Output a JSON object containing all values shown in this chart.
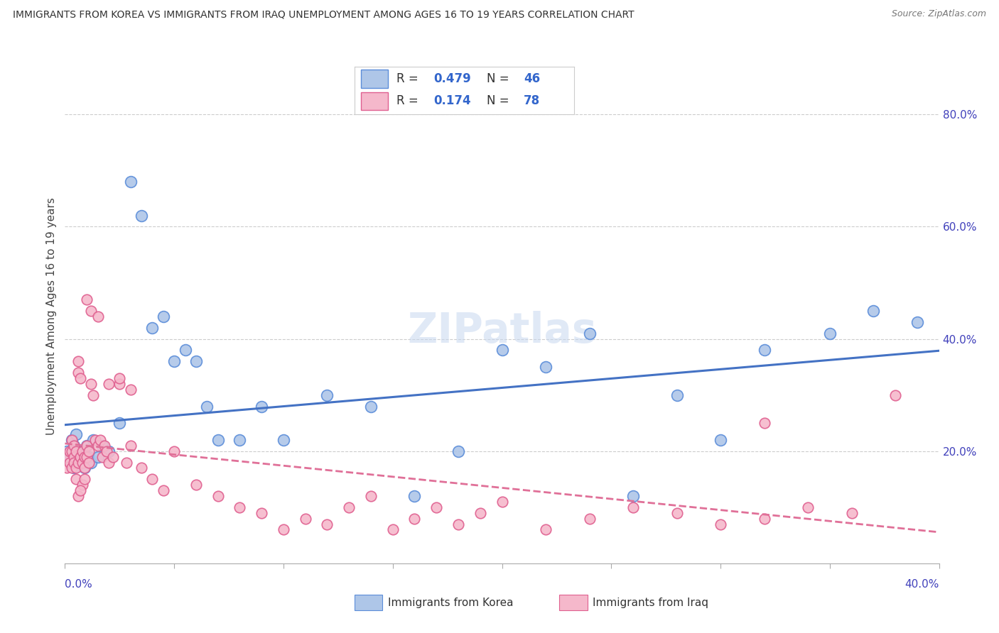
{
  "title": "IMMIGRANTS FROM KOREA VS IMMIGRANTS FROM IRAQ UNEMPLOYMENT AMONG AGES 16 TO 19 YEARS CORRELATION CHART",
  "source": "Source: ZipAtlas.com",
  "ylabel": "Unemployment Among Ages 16 to 19 years",
  "ylabel_right_ticks": [
    0.2,
    0.4,
    0.6,
    0.8
  ],
  "ylabel_right_labels": [
    "20.0%",
    "40.0%",
    "60.0%",
    "80.0%"
  ],
  "xlim": [
    0.0,
    0.4
  ],
  "ylim": [
    0.0,
    0.88
  ],
  "korea_R": 0.479,
  "korea_N": 46,
  "iraq_R": 0.174,
  "iraq_N": 78,
  "korea_color": "#aec6e8",
  "korea_edge_color": "#5b8dd9",
  "korea_line_color": "#4472c4",
  "iraq_color": "#f5b8cb",
  "iraq_edge_color": "#e06090",
  "iraq_line_color": "#e07098",
  "watermark": "ZIPatlas",
  "background_color": "#ffffff",
  "korea_x": [
    0.001,
    0.002,
    0.003,
    0.003,
    0.004,
    0.004,
    0.005,
    0.005,
    0.006,
    0.007,
    0.008,
    0.009,
    0.01,
    0.011,
    0.012,
    0.013,
    0.015,
    0.017,
    0.02,
    0.025,
    0.03,
    0.035,
    0.04,
    0.045,
    0.05,
    0.055,
    0.06,
    0.065,
    0.07,
    0.08,
    0.09,
    0.1,
    0.12,
    0.14,
    0.16,
    0.18,
    0.2,
    0.22,
    0.24,
    0.26,
    0.28,
    0.3,
    0.32,
    0.35,
    0.37,
    0.39
  ],
  "korea_y": [
    0.2,
    0.19,
    0.22,
    0.18,
    0.21,
    0.17,
    0.2,
    0.23,
    0.19,
    0.18,
    0.2,
    0.17,
    0.21,
    0.19,
    0.18,
    0.22,
    0.19,
    0.21,
    0.2,
    0.25,
    0.68,
    0.62,
    0.42,
    0.44,
    0.36,
    0.38,
    0.36,
    0.28,
    0.22,
    0.22,
    0.28,
    0.22,
    0.3,
    0.28,
    0.12,
    0.2,
    0.38,
    0.35,
    0.41,
    0.12,
    0.3,
    0.22,
    0.38,
    0.41,
    0.45,
    0.43
  ],
  "iraq_x": [
    0.001,
    0.001,
    0.002,
    0.002,
    0.003,
    0.003,
    0.003,
    0.004,
    0.004,
    0.004,
    0.005,
    0.005,
    0.005,
    0.006,
    0.006,
    0.006,
    0.007,
    0.007,
    0.008,
    0.008,
    0.009,
    0.009,
    0.01,
    0.01,
    0.011,
    0.011,
    0.012,
    0.013,
    0.014,
    0.015,
    0.016,
    0.017,
    0.018,
    0.019,
    0.02,
    0.022,
    0.025,
    0.028,
    0.03,
    0.035,
    0.04,
    0.045,
    0.05,
    0.06,
    0.07,
    0.08,
    0.09,
    0.1,
    0.11,
    0.12,
    0.13,
    0.14,
    0.15,
    0.16,
    0.17,
    0.18,
    0.19,
    0.2,
    0.22,
    0.24,
    0.26,
    0.28,
    0.3,
    0.32,
    0.34,
    0.36,
    0.38,
    0.32,
    0.01,
    0.012,
    0.015,
    0.02,
    0.025,
    0.03,
    0.008,
    0.009,
    0.006,
    0.007
  ],
  "iraq_y": [
    0.19,
    0.17,
    0.2,
    0.18,
    0.22,
    0.2,
    0.17,
    0.19,
    0.21,
    0.18,
    0.2,
    0.17,
    0.15,
    0.36,
    0.34,
    0.18,
    0.33,
    0.19,
    0.2,
    0.18,
    0.19,
    0.17,
    0.21,
    0.19,
    0.2,
    0.18,
    0.32,
    0.3,
    0.22,
    0.21,
    0.22,
    0.19,
    0.21,
    0.2,
    0.18,
    0.19,
    0.32,
    0.18,
    0.21,
    0.17,
    0.15,
    0.13,
    0.2,
    0.14,
    0.12,
    0.1,
    0.09,
    0.06,
    0.08,
    0.07,
    0.1,
    0.12,
    0.06,
    0.08,
    0.1,
    0.07,
    0.09,
    0.11,
    0.06,
    0.08,
    0.1,
    0.09,
    0.07,
    0.08,
    0.1,
    0.09,
    0.3,
    0.25,
    0.47,
    0.45,
    0.44,
    0.32,
    0.33,
    0.31,
    0.14,
    0.15,
    0.12,
    0.13
  ]
}
